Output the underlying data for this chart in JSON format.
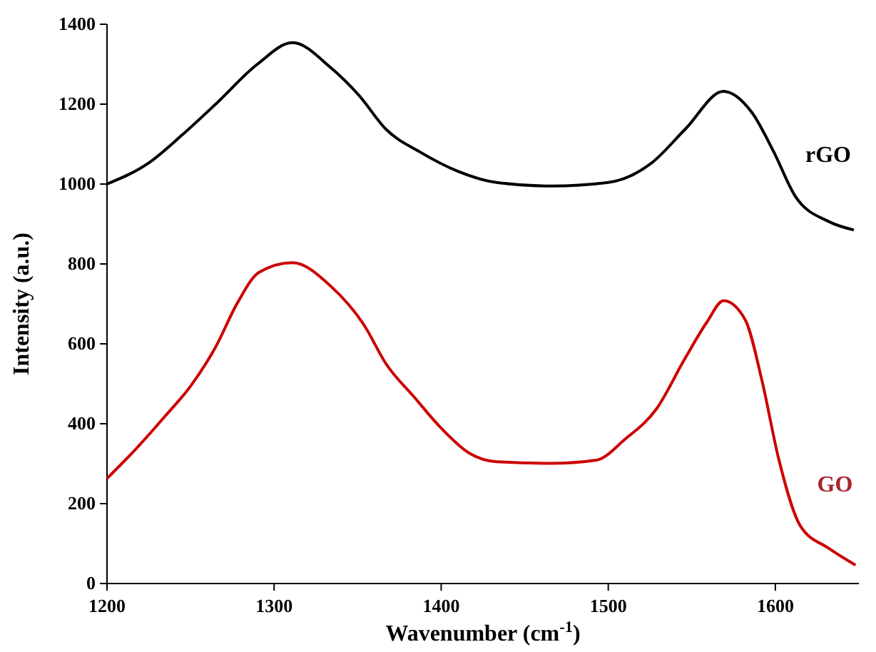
{
  "chart_data": {
    "type": "line",
    "xlabel": "Wavenumber (cm$^{-1}$)",
    "ylabel": "Intensity (a.u.)",
    "xlim": [
      1200,
      1650
    ],
    "xticks": [
      1200,
      1300,
      1400,
      1500,
      1600
    ],
    "ylim": [
      0,
      1400
    ],
    "yticks": [
      0,
      200,
      400,
      600,
      800,
      1000,
      1200,
      1400
    ],
    "grid": false,
    "legend": false,
    "marker": "none",
    "line_style": "solid",
    "series": [
      {
        "name": "rGO",
        "color": "#000000",
        "x": [
          1200,
          1225,
          1245,
          1265,
          1290,
          1311,
          1334,
          1351,
          1367,
          1387,
          1410,
          1433,
          1466,
          1500,
          1526,
          1546,
          1569,
          1586,
          1599,
          1612,
          1632,
          1647
        ],
        "values": [
          1000,
          1053,
          1123,
          1200,
          1300,
          1354,
          1291,
          1221,
          1137,
          1081,
          1032,
          1004,
          995,
          1004,
          1053,
          1137,
          1232,
          1179,
          1081,
          969,
          906,
          885
        ]
      },
      {
        "name": "GO",
        "color": "#cc0000",
        "x": [
          1200,
          1218,
          1235,
          1250,
          1265,
          1278,
          1291,
          1311,
          1334,
          1354,
          1367,
          1384,
          1400,
          1417,
          1433,
          1466,
          1493,
          1510,
          1529,
          1546,
          1559,
          1569,
          1582,
          1592,
          1602,
          1615,
          1632,
          1648
        ],
        "values": [
          263,
          340,
          420,
          494,
          592,
          702,
          779,
          803,
          744,
          646,
          550,
          466,
          389,
          326,
          305,
          301,
          309,
          361,
          438,
          564,
          654,
          708,
          660,
          508,
          312,
          144,
          88,
          46
        ]
      }
    ]
  }
}
